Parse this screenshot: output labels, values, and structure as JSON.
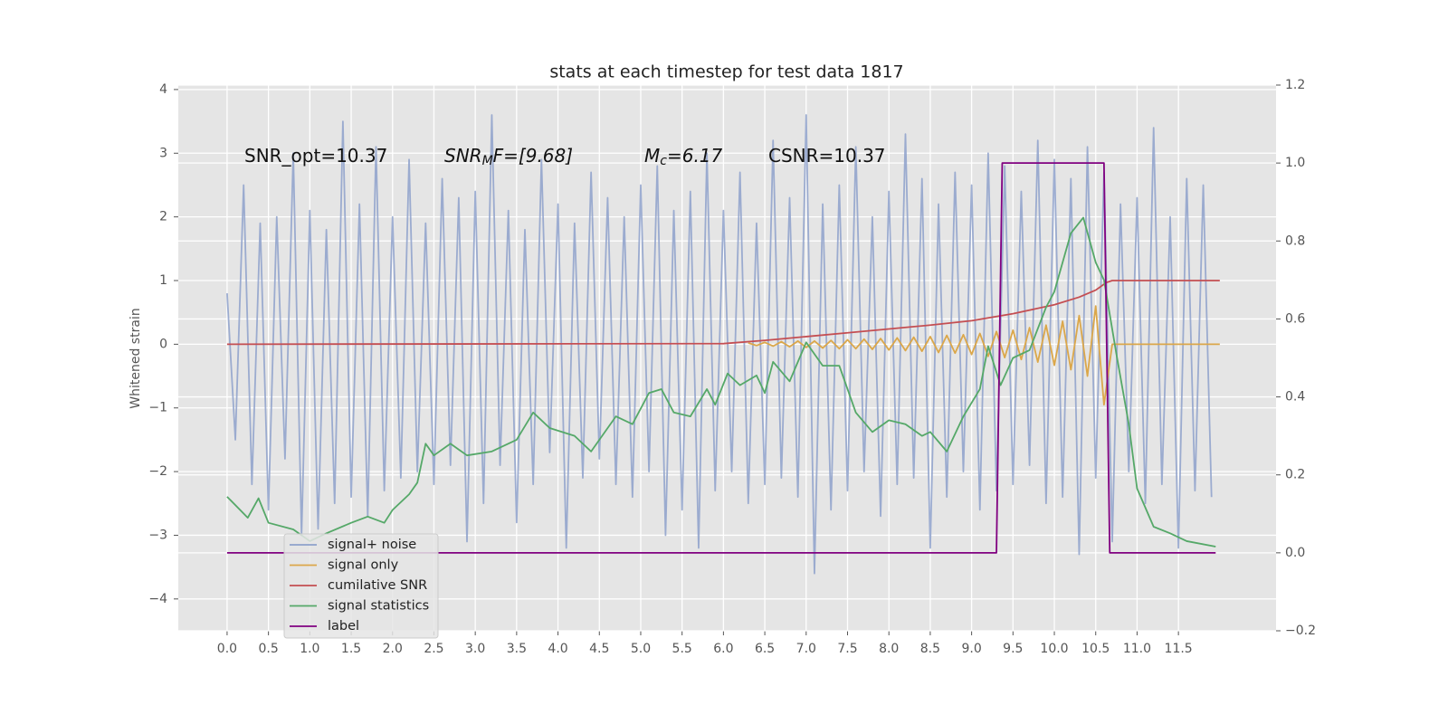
{
  "chart_data": {
    "type": "line",
    "title": "stats at each timestep for test data 1817",
    "y_label": "Whitened strain",
    "annotations": [
      [
        "SNR_opt=10.37"
      ],
      [
        "SNR",
        "M",
        "F=[9.68]"
      ],
      [
        "M",
        "c",
        "=6.17"
      ],
      [
        "CSNR=10.37"
      ]
    ],
    "xlim": [
      -0.59,
      12.68
    ],
    "ylim": [
      -4.5,
      4.07
    ],
    "y2lim": [
      -0.2,
      1.2
    ],
    "xticks": [
      {
        "value": 0,
        "label": "0.0"
      },
      {
        "value": 0.5,
        "label": "0.5"
      },
      {
        "value": 1,
        "label": "1.0"
      },
      {
        "value": 1.5,
        "label": "1.5"
      },
      {
        "value": 2,
        "label": "2.0"
      },
      {
        "value": 2.5,
        "label": "2.5"
      },
      {
        "value": 3,
        "label": "3.0"
      },
      {
        "value": 3.5,
        "label": "3.5"
      },
      {
        "value": 4,
        "label": "4.0"
      },
      {
        "value": 4.5,
        "label": "4.5"
      },
      {
        "value": 5,
        "label": "5.0"
      },
      {
        "value": 5.5,
        "label": "5.5"
      },
      {
        "value": 6,
        "label": "6.0"
      },
      {
        "value": 6.5,
        "label": "6.5"
      },
      {
        "value": 7,
        "label": "7.0"
      },
      {
        "value": 7.5,
        "label": "7.5"
      },
      {
        "value": 8,
        "label": "8.0"
      },
      {
        "value": 8.5,
        "label": "8.5"
      },
      {
        "value": 9,
        "label": "9.0"
      },
      {
        "value": 9.5,
        "label": "9.5"
      },
      {
        "value": 10,
        "label": "10.0"
      },
      {
        "value": 10.5,
        "label": "10.5"
      },
      {
        "value": 11,
        "label": "11.0"
      },
      {
        "value": 11.5,
        "label": "11.5"
      }
    ],
    "yticks": [
      {
        "value": -4,
        "label": "−4"
      },
      {
        "value": -3,
        "label": "−3"
      },
      {
        "value": -2,
        "label": "−2"
      },
      {
        "value": -1,
        "label": "−1"
      },
      0,
      1,
      2,
      3,
      4
    ],
    "y2ticks": [
      {
        "value": -0.2,
        "label": "−0.2"
      },
      {
        "value": 0,
        "label": "0.0"
      },
      0.2,
      0.4,
      0.6,
      0.8,
      {
        "value": 1,
        "label": "1.0"
      },
      1.2
    ],
    "grid": true,
    "legend": "lower left",
    "series": [
      {
        "name": "signal+ noise",
        "color": "#8ea1cb",
        "alpha": 0.85,
        "axis": "y",
        "x": [
          0,
          0.1,
          0.2,
          0.3,
          0.4,
          0.5,
          0.6,
          0.7,
          0.8,
          0.9,
          1,
          1.1,
          1.2,
          1.3,
          1.4,
          1.5,
          1.6,
          1.7,
          1.8,
          1.9,
          2,
          2.1,
          2.2,
          2.3,
          2.4,
          2.5,
          2.6,
          2.7,
          2.8,
          2.9,
          3,
          3.1,
          3.2,
          3.3,
          3.4,
          3.5,
          3.6,
          3.7,
          3.8,
          3.9,
          4,
          4.1,
          4.2,
          4.3,
          4.4,
          4.5,
          4.6,
          4.7,
          4.8,
          4.9,
          5,
          5.1,
          5.2,
          5.3,
          5.4,
          5.5,
          5.6,
          5.7,
          5.8,
          5.9,
          6,
          6.1,
          6.2,
          6.3,
          6.4,
          6.5,
          6.6,
          6.7,
          6.8,
          6.9,
          7,
          7.1,
          7.2,
          7.3,
          7.4,
          7.5,
          7.6,
          7.7,
          7.8,
          7.9,
          8,
          8.1,
          8.2,
          8.3,
          8.4,
          8.5,
          8.6,
          8.7,
          8.8,
          8.9,
          9,
          9.1,
          9.2,
          9.3,
          9.4,
          9.5,
          9.6,
          9.7,
          9.8,
          9.9,
          10,
          10.1,
          10.2,
          10.3,
          10.4,
          10.5,
          10.6,
          10.7,
          10.8,
          10.9,
          11,
          11.1,
          11.2,
          11.3,
          11.4,
          11.5,
          11.6,
          11.7,
          11.8,
          11.9
        ],
        "values": [
          0.8,
          -1.5,
          2.5,
          -2.2,
          1.9,
          -2.6,
          2.0,
          -1.8,
          3.0,
          -3.0,
          2.1,
          -2.9,
          1.8,
          -2.5,
          3.5,
          -2.4,
          2.2,
          -2.7,
          3.1,
          -2.3,
          2.0,
          -2.1,
          2.9,
          -2.0,
          1.9,
          -2.2,
          2.6,
          -1.9,
          2.3,
          -3.1,
          2.4,
          -2.5,
          3.6,
          -1.9,
          2.1,
          -2.8,
          1.8,
          -2.2,
          2.9,
          -1.7,
          2.2,
          -3.2,
          1.9,
          -2.1,
          2.7,
          -1.8,
          2.3,
          -2.2,
          2.0,
          -2.4,
          2.5,
          -2.0,
          2.8,
          -3.0,
          2.1,
          -2.6,
          2.4,
          -3.2,
          3.0,
          -2.3,
          2.1,
          -2.0,
          2.7,
          -2.5,
          1.9,
          -2.2,
          3.2,
          -2.1,
          2.3,
          -2.4,
          3.6,
          -3.6,
          2.2,
          -2.6,
          2.5,
          -2.3,
          3.1,
          -2.0,
          2.0,
          -2.7,
          2.4,
          -2.2,
          3.3,
          -2.1,
          2.6,
          -3.2,
          2.2,
          -2.4,
          2.7,
          -2.0,
          2.5,
          -2.6,
          3.0,
          -2.3,
          2.8,
          -2.2,
          2.4,
          -1.9,
          3.2,
          -2.5,
          2.9,
          -2.4,
          2.6,
          -3.3,
          3.1,
          -2.1,
          2.7,
          -3.1,
          2.2,
          -2.0,
          2.3,
          -2.5,
          3.4,
          -2.2,
          2.0,
          -3.2,
          2.6,
          -2.3,
          2.5,
          -2.4
        ]
      },
      {
        "name": "signal only",
        "color": "#dba74a",
        "axis": "y",
        "x": [
          6.3,
          6.4,
          6.5,
          6.6,
          6.7,
          6.8,
          6.9,
          7,
          7.1,
          7.2,
          7.3,
          7.4,
          7.5,
          7.6,
          7.7,
          7.8,
          7.9,
          8,
          8.1,
          8.2,
          8.3,
          8.4,
          8.5,
          8.6,
          8.7,
          8.8,
          8.9,
          9,
          9.1,
          9.2,
          9.3,
          9.4,
          9.5,
          9.6,
          9.7,
          9.8,
          9.9,
          10,
          10.1,
          10.2,
          10.3,
          10.4,
          10.5,
          10.6,
          10.7,
          12
        ],
        "values": [
          0.02,
          -0.02,
          0.03,
          -0.03,
          0.04,
          -0.04,
          0.05,
          -0.05,
          0.05,
          -0.06,
          0.06,
          -0.07,
          0.07,
          -0.07,
          0.08,
          -0.08,
          0.09,
          -0.09,
          0.1,
          -0.1,
          0.11,
          -0.11,
          0.12,
          -0.13,
          0.14,
          -0.14,
          0.15,
          -0.16,
          0.17,
          -0.19,
          0.2,
          -0.21,
          0.22,
          -0.24,
          0.26,
          -0.28,
          0.3,
          -0.33,
          0.36,
          -0.4,
          0.45,
          -0.5,
          0.6,
          -0.95,
          0,
          0
        ]
      },
      {
        "name": "cumilative SNR",
        "color": "#c44e52",
        "axis": "y",
        "x": [
          0,
          6,
          6.5,
          7,
          7.5,
          8,
          8.5,
          9,
          9.5,
          10,
          10.3,
          10.5,
          10.63,
          10.7,
          12
        ],
        "values": [
          0,
          0.01,
          0.06,
          0.12,
          0.18,
          0.24,
          0.3,
          0.37,
          0.48,
          0.62,
          0.74,
          0.85,
          0.97,
          1,
          1
        ]
      },
      {
        "name": "signal statistics",
        "color": "#55a868",
        "axis": "y2",
        "x": [
          0,
          0.25,
          0.38,
          0.5,
          0.8,
          1,
          1.2,
          1.5,
          1.7,
          1.9,
          2,
          2.2,
          2.3,
          2.4,
          2.5,
          2.7,
          2.9,
          3.2,
          3.5,
          3.7,
          3.9,
          4.2,
          4.4,
          4.7,
          4.9,
          5.1,
          5.25,
          5.4,
          5.6,
          5.8,
          5.9,
          6.05,
          6.2,
          6.4,
          6.5,
          6.6,
          6.8,
          7,
          7.2,
          7.4,
          7.6,
          7.8,
          8,
          8.2,
          8.4,
          8.5,
          8.7,
          8.9,
          9.1,
          9.2,
          9.35,
          9.5,
          9.7,
          9.9,
          10,
          10.2,
          10.35,
          10.5,
          10.6,
          10.75,
          10.9,
          11,
          11.2,
          11.4,
          11.6,
          11.95
        ],
        "values": [
          0.144,
          0.09,
          0.14,
          0.077,
          0.06,
          0.03,
          0.05,
          0.077,
          0.093,
          0.077,
          0.11,
          0.15,
          0.18,
          0.28,
          0.25,
          0.28,
          0.25,
          0.26,
          0.29,
          0.36,
          0.32,
          0.3,
          0.26,
          0.35,
          0.33,
          0.41,
          0.42,
          0.36,
          0.35,
          0.42,
          0.38,
          0.46,
          0.43,
          0.455,
          0.41,
          0.49,
          0.44,
          0.54,
          0.48,
          0.48,
          0.36,
          0.31,
          0.34,
          0.33,
          0.3,
          0.31,
          0.26,
          0.35,
          0.42,
          0.53,
          0.43,
          0.5,
          0.52,
          0.63,
          0.67,
          0.82,
          0.86,
          0.745,
          0.7,
          0.51,
          0.33,
          0.165,
          0.067,
          0.05,
          0.03,
          0.016
        ]
      },
      {
        "name": "label",
        "color": "#800080",
        "axis": "y2",
        "x": [
          0,
          9.3,
          9.37,
          10.6,
          10.67,
          11.95
        ],
        "values": [
          0,
          0,
          1,
          1,
          0,
          0
        ]
      }
    ]
  }
}
